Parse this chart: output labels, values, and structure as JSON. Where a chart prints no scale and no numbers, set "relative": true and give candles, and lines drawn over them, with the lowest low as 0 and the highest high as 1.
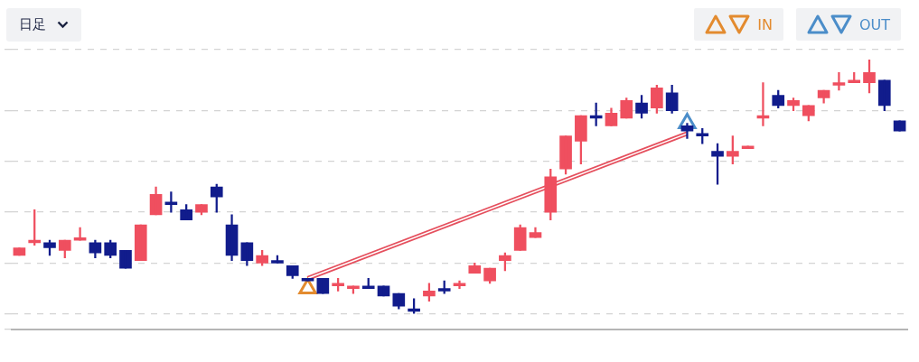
{
  "chart_data": {
    "type": "candlestick",
    "relative": true,
    "grid": "y",
    "legend": "top right",
    "annotations": [
      "日足"
    ],
    "categories": [
      null,
      null,
      null,
      null,
      null,
      null,
      null,
      null,
      null,
      null,
      null,
      null,
      null,
      null,
      null,
      null,
      null,
      null,
      null,
      null,
      null,
      null,
      null,
      null,
      null,
      null,
      null,
      null,
      null,
      null,
      null,
      null,
      null,
      null,
      null,
      null,
      null,
      null,
      null,
      null,
      null,
      null,
      null,
      null,
      null,
      null,
      null,
      null,
      null,
      null,
      null,
      null,
      null,
      null,
      null,
      null,
      null,
      null,
      null
    ],
    "ohlc": [
      [
        0.23,
        0.26,
        0.23,
        0.26
      ],
      [
        0.28,
        0.41,
        0.27,
        0.29
      ],
      [
        0.28,
        0.29,
        0.23,
        0.26
      ],
      [
        0.25,
        0.29,
        0.22,
        0.29
      ],
      [
        0.29,
        0.34,
        0.29,
        0.3
      ],
      [
        0.28,
        0.29,
        0.22,
        0.24
      ],
      [
        0.28,
        0.29,
        0.22,
        0.23
      ],
      [
        0.25,
        0.25,
        0.18,
        0.18
      ],
      [
        0.21,
        0.35,
        0.21,
        0.35
      ],
      [
        0.39,
        0.5,
        0.39,
        0.47
      ],
      [
        0.44,
        0.48,
        0.4,
        0.43
      ],
      [
        0.41,
        0.43,
        0.37,
        0.37
      ],
      [
        0.4,
        0.43,
        0.39,
        0.43
      ],
      [
        0.5,
        0.51,
        0.4,
        0.46
      ],
      [
        0.35,
        0.39,
        0.21,
        0.23
      ],
      [
        0.28,
        0.28,
        0.19,
        0.21
      ],
      [
        0.2,
        0.25,
        0.19,
        0.23
      ],
      [
        0.21,
        0.23,
        0.2,
        0.2
      ],
      [
        0.19,
        0.19,
        0.14,
        0.15
      ],
      [
        0.14,
        0.14,
        0.13,
        0.13
      ],
      [
        0.14,
        0.14,
        0.08,
        0.08
      ],
      [
        0.11,
        0.14,
        0.09,
        0.12
      ],
      [
        0.1,
        0.11,
        0.08,
        0.11
      ],
      [
        0.11,
        0.14,
        0.1,
        0.1
      ],
      [
        0.11,
        0.11,
        0.07,
        0.07
      ],
      [
        0.08,
        0.08,
        0.02,
        0.03
      ],
      [
        0.02,
        0.06,
        0,
        0.01
      ],
      [
        0.07,
        0.12,
        0.05,
        0.09
      ],
      [
        0.1,
        0.13,
        0.08,
        0.09
      ],
      [
        0.11,
        0.13,
        0.1,
        0.12
      ],
      [
        0.16,
        0.2,
        0.16,
        0.19
      ],
      [
        0.13,
        0.18,
        0.12,
        0.18
      ],
      [
        0.21,
        0.24,
        0.17,
        0.23
      ],
      [
        0.25,
        0.35,
        0.25,
        0.34
      ],
      [
        0.3,
        0.34,
        0.3,
        0.32
      ],
      [
        0.4,
        0.57,
        0.37,
        0.54
      ],
      [
        0.57,
        0.7,
        0.55,
        0.7
      ],
      [
        0.68,
        0.78,
        0.59,
        0.78
      ],
      [
        0.78,
        0.83,
        0.74,
        0.77
      ],
      [
        0.74,
        0.81,
        0.74,
        0.79
      ],
      [
        0.77,
        0.85,
        0.77,
        0.84
      ],
      [
        0.83,
        0.86,
        0.77,
        0.79
      ],
      [
        0.81,
        0.9,
        0.79,
        0.89
      ],
      [
        0.87,
        0.9,
        0.79,
        0.8
      ],
      [
        0.74,
        0.75,
        0.69,
        0.72
      ],
      [
        0.71,
        0.73,
        0.67,
        0.7
      ],
      [
        0.64,
        0.67,
        0.51,
        0.62
      ],
      [
        0.62,
        0.7,
        0.59,
        0.64
      ],
      [
        0.65,
        0.66,
        0.65,
        0.66
      ],
      [
        0.77,
        0.91,
        0.74,
        0.78
      ],
      [
        0.86,
        0.88,
        0.81,
        0.82
      ],
      [
        0.82,
        0.85,
        0.8,
        0.84
      ],
      [
        0.78,
        0.82,
        0.76,
        0.82
      ],
      [
        0.85,
        0.88,
        0.83,
        0.88
      ],
      [
        0.9,
        0.95,
        0.88,
        0.91
      ],
      [
        0.91,
        0.95,
        0.91,
        0.92
      ],
      [
        0.91,
        1,
        0.87,
        0.95
      ],
      [
        0.92,
        0.92,
        0.8,
        0.82
      ],
      [
        0.76,
        0.76,
        0.72,
        0.72
      ]
    ],
    "colors": [
      "#ef4f5f",
      "#ef4f5f",
      "#111c8c",
      "#ef4f5f",
      "#ef4f5f",
      "#111c8c",
      "#111c8c",
      "#111c8c",
      "#ef4f5f",
      "#ef4f5f",
      "#111c8c",
      "#111c8c",
      "#ef4f5f",
      "#111c8c",
      "#111c8c",
      "#111c8c",
      "#ef4f5f",
      "#111c8c",
      "#111c8c",
      "#111c8c",
      "#111c8c",
      "#ef4f5f",
      "#ef4f5f",
      "#111c8c",
      "#111c8c",
      "#111c8c",
      "#111c8c",
      "#ef4f5f",
      "#111c8c",
      "#ef4f5f",
      "#ef4f5f",
      "#ef4f5f",
      "#ef4f5f",
      "#ef4f5f",
      "#ef4f5f",
      "#ef4f5f",
      "#ef4f5f",
      "#ef4f5f",
      "#111c8c",
      "#ef4f5f",
      "#ef4f5f",
      "#111c8c",
      "#ef4f5f",
      "#111c8c",
      "#111c8c",
      "#111c8c",
      "#111c8c",
      "#ef4f5f",
      "#ef4f5f",
      "#ef4f5f",
      "#111c8c",
      "#ef4f5f",
      "#ef4f5f",
      "#ef4f5f",
      "#ef4f5f",
      "#ef4f5f",
      "#ef4f5f",
      "#111c8c",
      "#111c8c"
    ],
    "series": [
      {
        "type": "line",
        "color": "#e5505e",
        "values": [
          null,
          null,
          null,
          null,
          null,
          null,
          null,
          null,
          null,
          null,
          null,
          null,
          null,
          null,
          null,
          null,
          null,
          null,
          null,
          0.14,
          null,
          null,
          null,
          null,
          null,
          null,
          null,
          null,
          null,
          null,
          null,
          null,
          null,
          null,
          null,
          null,
          null,
          null,
          null,
          null,
          null,
          null,
          null,
          null,
          0.71,
          null,
          null,
          null,
          null,
          null,
          null,
          null,
          null,
          null,
          null,
          null,
          null,
          null,
          null
        ]
      },
      {
        "type": "scatter",
        "name": "IN",
        "color": "#e38b2f",
        "marker": "triangle",
        "values": [
          null,
          null,
          null,
          null,
          null,
          null,
          null,
          null,
          null,
          null,
          null,
          null,
          null,
          null,
          null,
          null,
          null,
          null,
          null,
          0.1,
          null,
          null,
          null,
          null,
          null,
          null,
          null,
          null,
          null,
          null,
          null,
          null,
          null,
          null,
          null,
          null,
          null,
          null,
          null,
          null,
          null,
          null,
          null,
          null,
          null,
          null,
          null,
          null,
          null,
          null,
          null,
          null,
          null,
          null,
          null,
          null,
          null,
          null,
          null
        ]
      },
      {
        "type": "scatter",
        "name": "OUT",
        "color": "#4b8dc9",
        "marker": "triangle",
        "values": [
          null,
          null,
          null,
          null,
          null,
          null,
          null,
          null,
          null,
          null,
          null,
          null,
          null,
          null,
          null,
          null,
          null,
          null,
          null,
          null,
          null,
          null,
          null,
          null,
          null,
          null,
          null,
          null,
          null,
          null,
          null,
          null,
          null,
          null,
          null,
          null,
          null,
          null,
          null,
          null,
          null,
          null,
          null,
          null,
          0.75,
          null,
          null,
          null,
          null,
          null,
          null,
          null,
          null,
          null,
          null,
          null,
          null,
          null,
          null
        ]
      }
    ]
  }
}
